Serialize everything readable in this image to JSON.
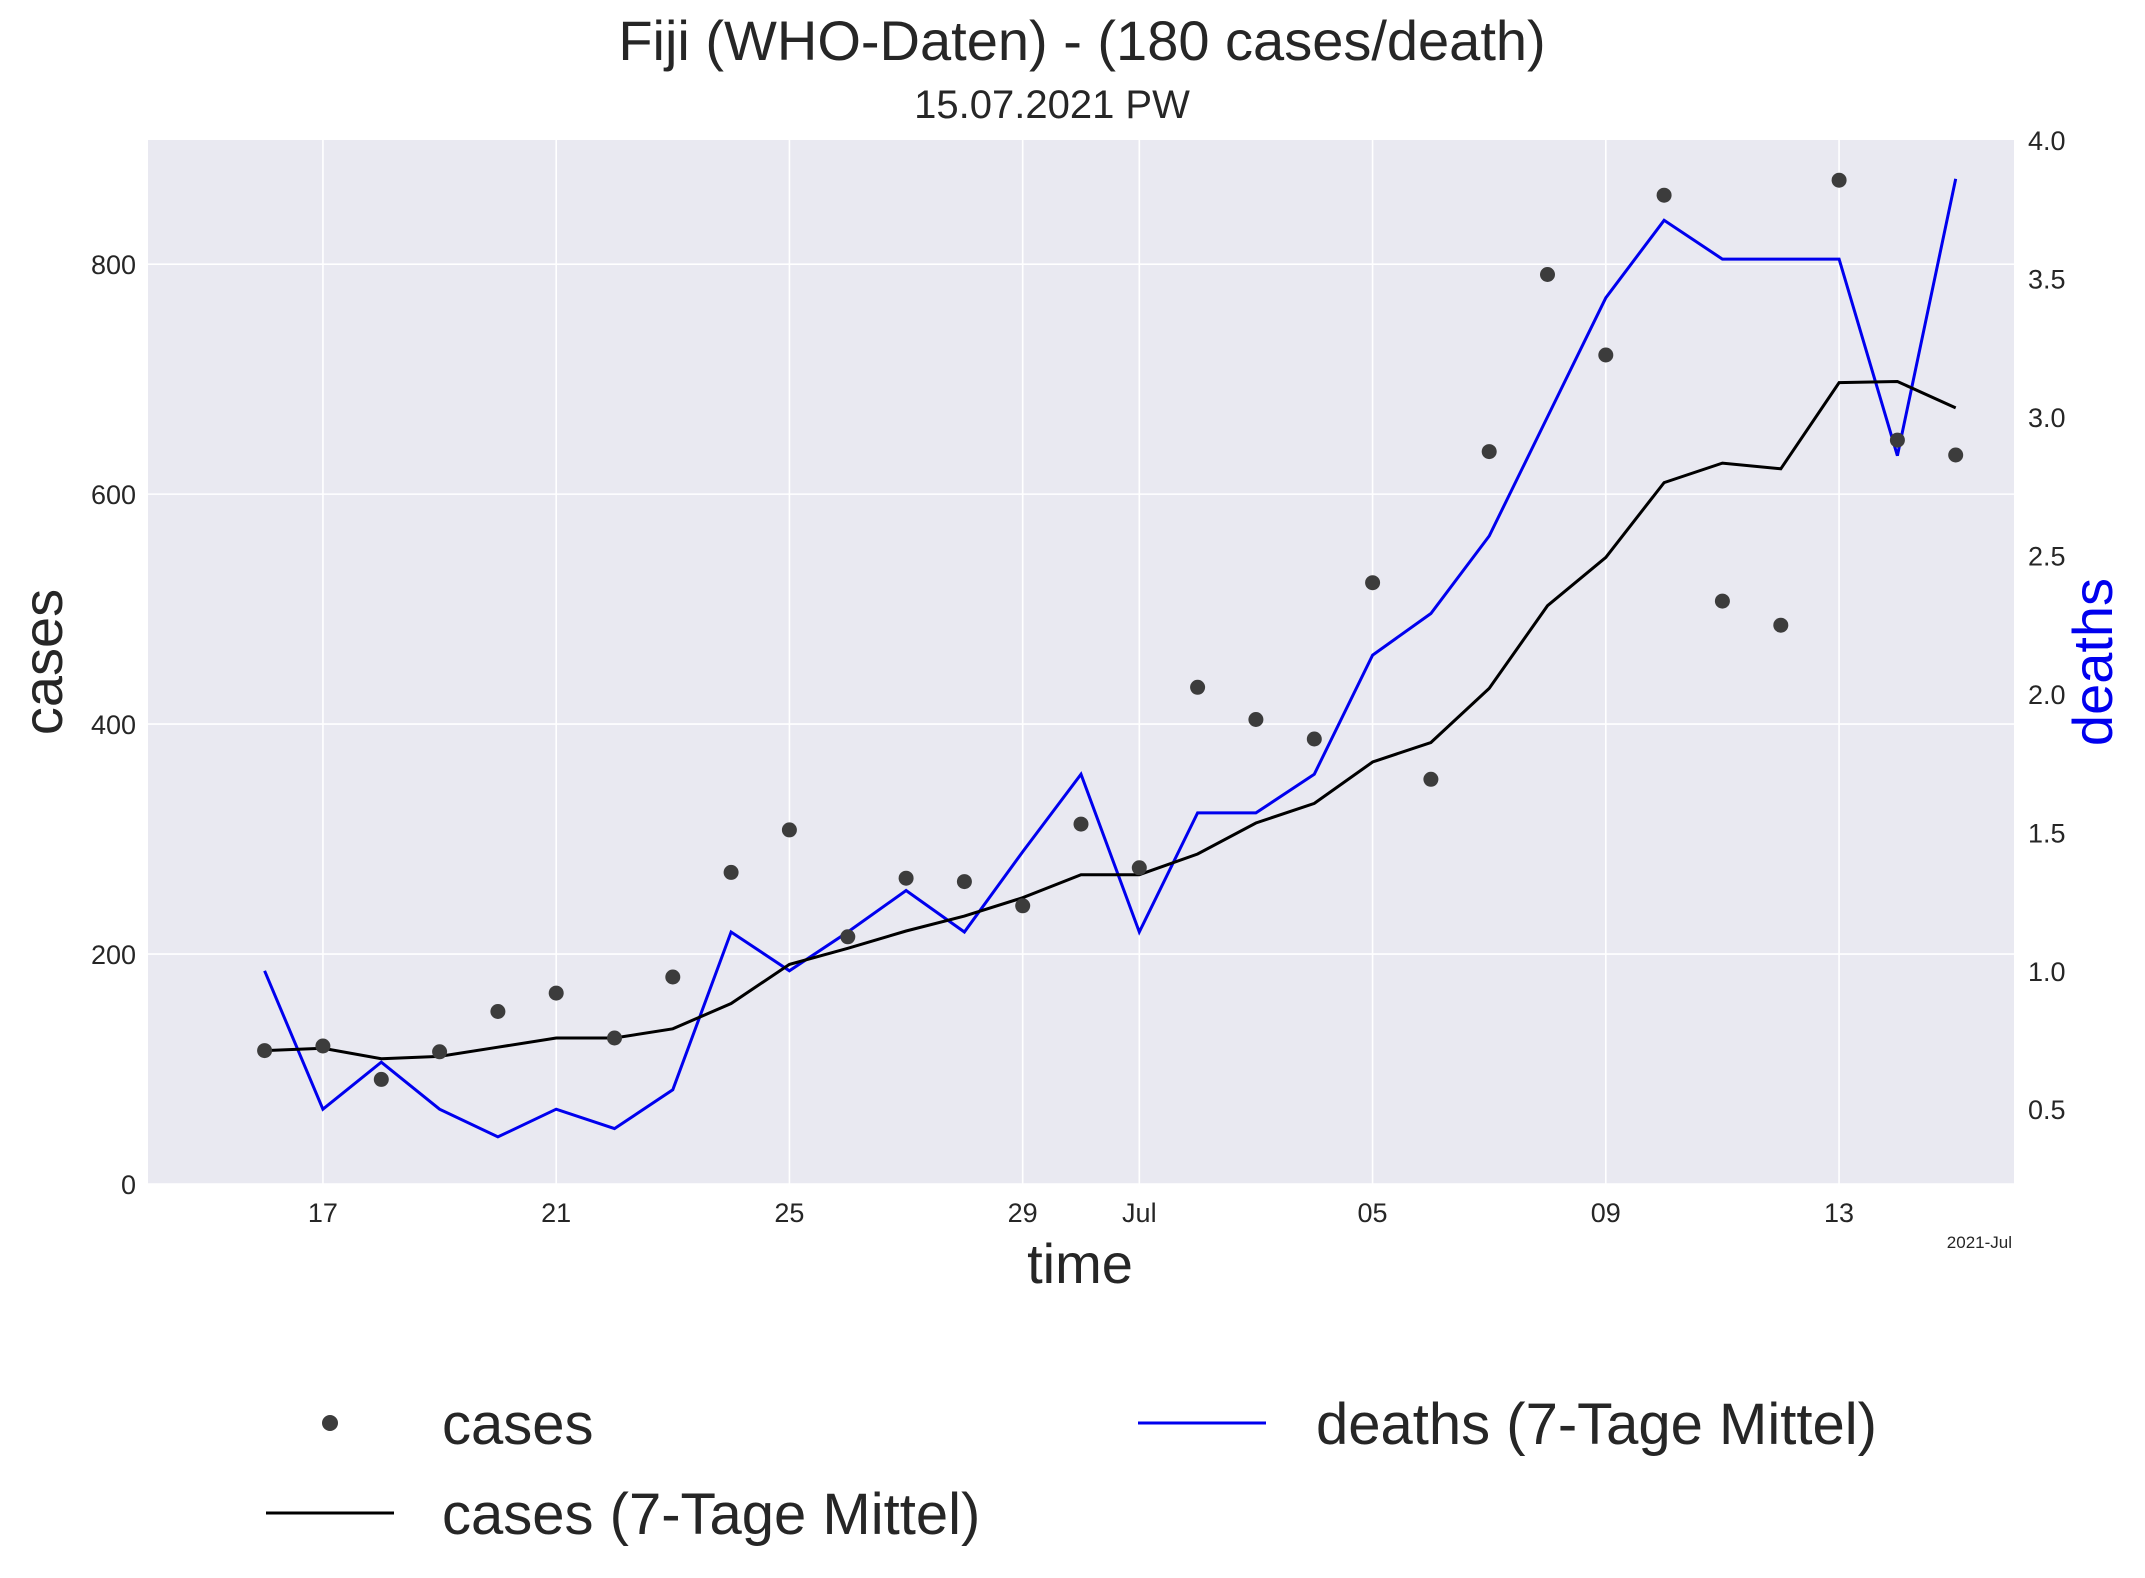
{
  "colors": {
    "plot_background": "#e9e9f1",
    "grid": "#ffffff",
    "cases_points": "#3c3c3c",
    "cases_mean": "#000000",
    "deaths_mean": "#0000ee",
    "deaths_axis_label": "#0000ee",
    "text": "#262626"
  },
  "chart_data": {
    "type": "line",
    "title": "Fiji (WHO-Daten) - (180 cases/death)",
    "subtitle": "15.07.2021 PW",
    "xlabel": "time",
    "ylabel": "cases",
    "y2label": "deaths",
    "x_corner_label": "2021-Jul",
    "x_range": [
      "2021-06-14",
      "2021-07-16"
    ],
    "ylim": [
      0,
      908
    ],
    "y2lim": [
      0.23,
      4.0
    ],
    "grid": true,
    "legend_position": "bottom",
    "x_ticks": [
      {
        "date": "2021-06-17",
        "label": "17"
      },
      {
        "date": "2021-06-21",
        "label": "21"
      },
      {
        "date": "2021-06-25",
        "label": "25"
      },
      {
        "date": "2021-06-29",
        "label": "29"
      },
      {
        "date": "2021-07-01",
        "label": "Jul"
      },
      {
        "date": "2021-07-05",
        "label": "05"
      },
      {
        "date": "2021-07-09",
        "label": "09"
      },
      {
        "date": "2021-07-13",
        "label": "13"
      }
    ],
    "y_ticks": [
      0,
      200,
      400,
      600,
      800
    ],
    "y2_ticks": [
      {
        "value": 0.5,
        "label": "0.5"
      },
      {
        "value": 1.0,
        "label": "1.0"
      },
      {
        "value": 1.5,
        "label": "1.5"
      },
      {
        "value": 2.0,
        "label": "2.0"
      },
      {
        "value": 2.5,
        "label": "2.5"
      },
      {
        "value": 3.0,
        "label": "3.0"
      },
      {
        "value": 3.5,
        "label": "3.5"
      },
      {
        "value": 4.0,
        "label": "4.0"
      }
    ],
    "dates": [
      "2021-06-16",
      "2021-06-17",
      "2021-06-18",
      "2021-06-19",
      "2021-06-20",
      "2021-06-21",
      "2021-06-22",
      "2021-06-23",
      "2021-06-24",
      "2021-06-25",
      "2021-06-26",
      "2021-06-27",
      "2021-06-28",
      "2021-06-29",
      "2021-06-30",
      "2021-07-01",
      "2021-07-02",
      "2021-07-03",
      "2021-07-04",
      "2021-07-05",
      "2021-07-06",
      "2021-07-07",
      "2021-07-08",
      "2021-07-09",
      "2021-07-10",
      "2021-07-11",
      "2021-07-12",
      "2021-07-13",
      "2021-07-14",
      "2021-07-15"
    ],
    "series": [
      {
        "name": "cases",
        "axis": "left",
        "style": "points",
        "values": [
          116,
          120,
          91,
          115,
          150,
          166,
          127,
          180,
          271,
          308,
          215,
          266,
          263,
          242,
          313,
          275,
          432,
          404,
          387,
          523,
          352,
          637,
          791,
          721,
          860,
          507,
          486,
          873,
          647,
          634
        ]
      },
      {
        "name": "cases (7-Tage Mittel)",
        "axis": "left",
        "style": "line",
        "values": [
          116,
          118,
          109,
          111,
          119,
          127,
          127,
          135,
          157,
          191,
          205,
          220,
          233,
          249,
          269,
          269,
          287,
          314,
          331,
          367,
          384,
          431,
          503,
          545,
          610,
          627,
          622,
          697,
          698,
          675
        ]
      },
      {
        "name": "deaths (7-Tage Mittel)",
        "axis": "right",
        "style": "line",
        "values": [
          1.0,
          0.5,
          0.67,
          0.5,
          0.4,
          0.5,
          0.43,
          0.57,
          1.14,
          1.0,
          1.14,
          1.29,
          1.14,
          1.43,
          1.71,
          1.14,
          1.57,
          1.57,
          1.71,
          2.14,
          2.29,
          2.57,
          3.0,
          3.43,
          3.71,
          3.57,
          3.57,
          3.57,
          2.86,
          3.86
        ]
      }
    ]
  }
}
